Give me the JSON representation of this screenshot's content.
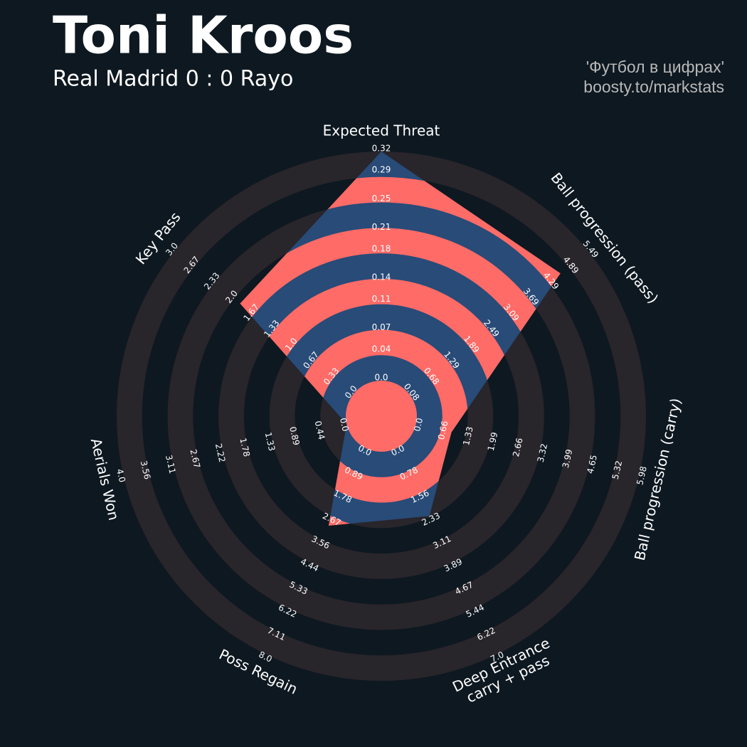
{
  "header": {
    "title": "Toni Kroos",
    "subtitle": "Real Madrid 0 : 0 Rayo",
    "credit_line1": "'Футбол в цифрах'",
    "credit_line2": "boosty.to/markstats"
  },
  "chart_data": {
    "type": "radar",
    "categories": [
      "Expected Threat",
      "Ball progression (pass)",
      "Ball progression (carry)",
      "Deep Entrance\ncarry + pass",
      "Poss Regain",
      "Aerials Won",
      "Key Pass"
    ],
    "values": [
      0.32,
      4.65,
      0.95,
      2.3,
      3.0,
      0,
      1.9
    ],
    "color": "#284b78",
    "band_color": "#ff6b66",
    "axes": [
      {
        "lim": [
          0,
          0.32
        ],
        "ticks": [
          {
            "value": 0,
            "label": "0.0"
          },
          0.04,
          0.07,
          0.11,
          0.14,
          0.18,
          0.21,
          0.25,
          0.29,
          0.32
        ]
      },
      {
        "lim": [
          0.08,
          5.49
        ],
        "ticks": [
          0.08,
          0.68,
          1.29,
          1.89,
          2.49,
          3.09,
          3.69,
          4.29,
          4.89,
          5.49
        ]
      },
      {
        "lim": [
          0,
          5.98
        ],
        "ticks": [
          {
            "value": 0,
            "label": "0.0"
          },
          0.66,
          1.33,
          1.99,
          2.66,
          3.32,
          3.99,
          4.65,
          5.32,
          5.98
        ]
      },
      {
        "lim": [
          0,
          7
        ],
        "ticks": [
          {
            "value": 0,
            "label": "0.0"
          },
          0.78,
          1.56,
          2.33,
          3.11,
          3.89,
          4.67,
          5.44,
          6.22,
          {
            "value": 7,
            "label": "7.0"
          }
        ]
      },
      {
        "lim": [
          0,
          8
        ],
        "ticks": [
          {
            "value": 0,
            "label": "0.0"
          },
          0.89,
          1.78,
          2.67,
          3.56,
          4.44,
          5.33,
          6.22,
          7.11,
          {
            "value": 8,
            "label": "8.0"
          }
        ]
      },
      {
        "lim": [
          0,
          4
        ],
        "ticks": [
          {
            "value": 0,
            "label": "0.0"
          },
          0.44,
          0.89,
          1.33,
          1.78,
          2.22,
          2.67,
          3.11,
          3.56,
          {
            "value": 4,
            "label": "4.0"
          }
        ]
      },
      {
        "lim": [
          0,
          3
        ],
        "ticks": [
          {
            "value": 0,
            "label": "0.0"
          },
          0.33,
          0.67,
          {
            "value": 1,
            "label": "1.0"
          },
          1.33,
          1.67,
          {
            "value": 2,
            "label": "2.0"
          },
          2.33,
          2.67,
          {
            "value": 3,
            "label": "3.0"
          }
        ]
      }
    ]
  }
}
